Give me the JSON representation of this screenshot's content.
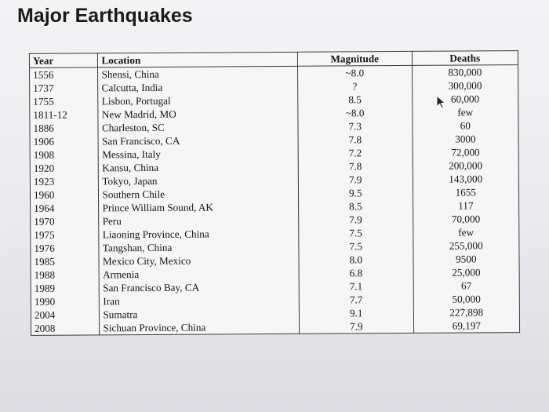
{
  "title": "Major Earthquakes",
  "table": {
    "headers": [
      "Year",
      "Location",
      "Magnitude",
      "Deaths"
    ],
    "rows": [
      [
        "1556",
        "Shensi, China",
        "~8.0",
        "830,000"
      ],
      [
        "1737",
        "Calcutta, India",
        "?",
        "300,000"
      ],
      [
        "1755",
        "Lisbon, Portugal",
        "8.5",
        "60,000"
      ],
      [
        "1811-12",
        "New Madrid, MO",
        "~8.0",
        "few"
      ],
      [
        "1886",
        "Charleston, SC",
        "7.3",
        "60"
      ],
      [
        "1906",
        "San Francisco, CA",
        "7.8",
        "3000"
      ],
      [
        "1908",
        "Messina, Italy",
        "7.2",
        "72,000"
      ],
      [
        "1920",
        "Kansu, China",
        "7.8",
        "200,000"
      ],
      [
        "1923",
        "Tokyo, Japan",
        "7.9",
        "143,000"
      ],
      [
        "1960",
        "Southern Chile",
        "9.5",
        "1655"
      ],
      [
        "1964",
        "Prince William Sound, AK",
        "8.5",
        "117"
      ],
      [
        "1970",
        "Peru",
        "7.9",
        "70,000"
      ],
      [
        "1975",
        "Liaoning Province, China",
        "7.5",
        "few"
      ],
      [
        "1976",
        "Tangshan, China",
        "7.5",
        "255,000"
      ],
      [
        "1985",
        "Mexico City, Mexico",
        "8.0",
        "9500"
      ],
      [
        "1988",
        "Armenia",
        "6.8",
        "25,000"
      ],
      [
        "1989",
        "San Francisco Bay, CA",
        "7.1",
        "67"
      ],
      [
        "1990",
        "Iran",
        "7.7",
        "50,000"
      ],
      [
        "2004",
        "Sumatra",
        "9.1",
        "227,898"
      ],
      [
        "2008",
        "Sichuan Province, China",
        "7.9",
        "69,197"
      ]
    ]
  },
  "icons": {
    "cursor": "mouse-pointer-icon"
  }
}
